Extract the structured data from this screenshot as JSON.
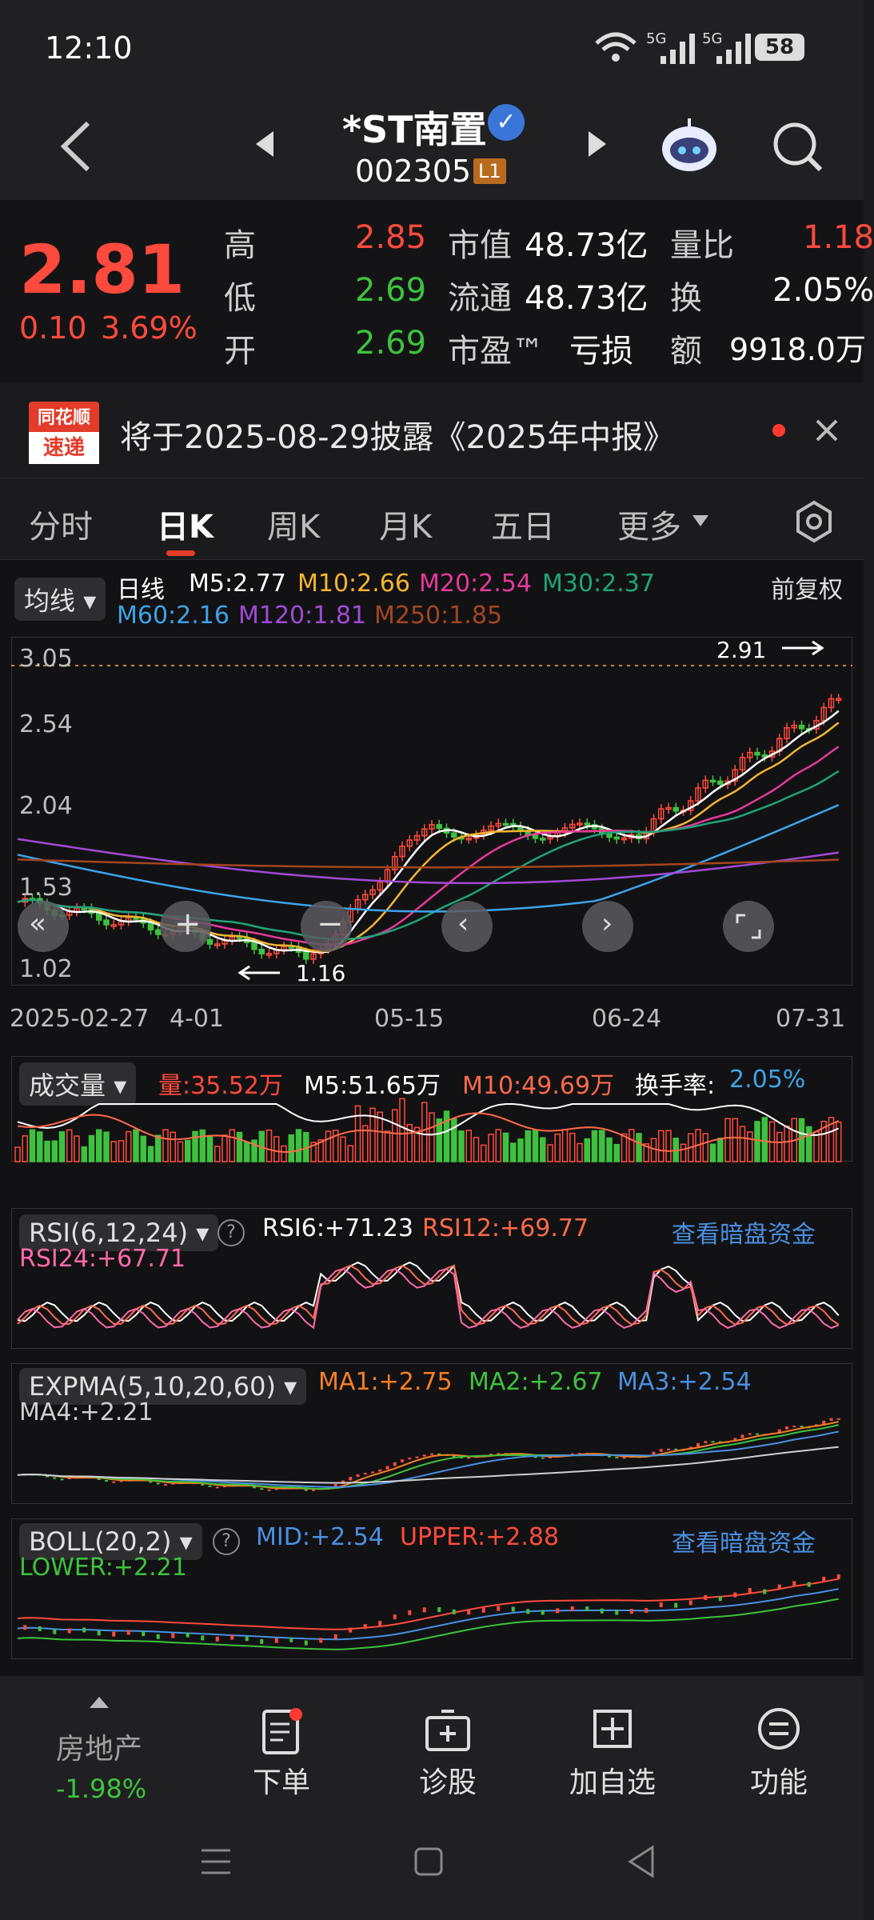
{
  "status": {
    "time": "12:10",
    "battery": "58",
    "net1": "5G",
    "net2": "5G"
  },
  "header": {
    "name": "*ST南置",
    "code": "002305",
    "level": "L1"
  },
  "quote": {
    "price": "2.81",
    "change": "0.10",
    "pct": "3.69%",
    "high_label": "高",
    "high": "2.85",
    "low_label": "低",
    "low": "2.69",
    "open_label": "开",
    "open": "2.69",
    "mcap_label": "市值",
    "mcap": "48.73亿",
    "float_label": "流通",
    "float": "48.73亿",
    "pe_label": "市盈™",
    "pe": "亏损",
    "vr_label": "量比",
    "vr": "1.18",
    "turn_label": "换",
    "turn": "2.05%",
    "amt_label": "额",
    "amt": "9918.0万"
  },
  "news": {
    "badge1": "同花顺",
    "badge2": "速递",
    "text": "将于2025-08-29披露《2025年中报》"
  },
  "tabs": [
    "分时",
    "日K",
    "周K",
    "月K",
    "五日",
    "更多"
  ],
  "ma": {
    "selector": "均线",
    "period": "日线",
    "adj": "前复权",
    "m5": "M5:2.77",
    "m10": "M10:2.66",
    "m20": "M20:2.54",
    "m30": "M30:2.37",
    "m60": "M60:2.16",
    "m120": "M120:1.81",
    "m250": "M250:1.85"
  },
  "kline": {
    "y_ticks": [
      "3.05",
      "2.54",
      "2.04",
      "1.53",
      "1.02"
    ],
    "x_dates": [
      "2025-02-27",
      "4-01",
      "05-15",
      "06-24",
      "07-31"
    ],
    "max_label": "2.91",
    "min_label": "1.16"
  },
  "vol": {
    "selector": "成交量",
    "v": "量:35.52万",
    "m5": "M5:51.65万",
    "m10": "M10:49.69万",
    "turn_label": "换手率:",
    "turn": "2.05%"
  },
  "rsi": {
    "selector": "RSI(6,12,24)",
    "r6": "RSI6:+71.23",
    "r12": "RSI12:+69.77",
    "r24": "RSI24:+67.71",
    "link": "查看暗盘资金"
  },
  "expma": {
    "selector": "EXPMA(5,10,20,60)",
    "ma1": "MA1:+2.75",
    "ma2": "MA2:+2.67",
    "ma3": "MA3:+2.54",
    "ma4": "MA4:+2.21"
  },
  "boll": {
    "selector": "BOLL(20,2)",
    "mid": "MID:+2.54",
    "upper": "UPPER:+2.88",
    "lower": "LOWER:+2.21",
    "link": "查看暗盘资金"
  },
  "bottom": {
    "sector": "房地产",
    "sector_pct": "-1.98%",
    "order": "下单",
    "diagnose": "诊股",
    "watch": "加自选",
    "func": "功能"
  },
  "colors": {
    "up": "#ff4a3d",
    "down": "#3ec23e",
    "m5": "#ffffff",
    "m10": "#f5b531",
    "m20": "#e5399a",
    "m30": "#1fa37a",
    "m60": "#3ea3e8",
    "m120": "#a14ad6",
    "m250": "#a4451f",
    "link": "#4a8fe0"
  }
}
